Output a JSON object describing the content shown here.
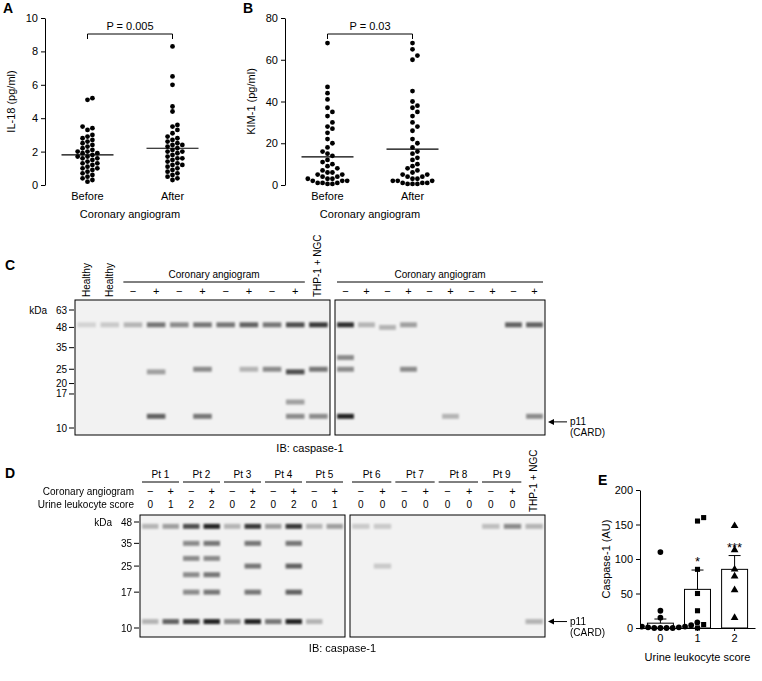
{
  "chart_data": [
    {
      "panel": "A",
      "type": "dot",
      "y_label": "IL-18 (pg/ml)",
      "x_label": "Coronary angiogram",
      "categories": [
        "Before",
        "After"
      ],
      "values": [
        [
          5.2,
          5.1,
          3.5,
          3.4,
          3.3,
          3.0,
          2.9,
          2.8,
          2.7,
          2.6,
          2.5,
          2.4,
          2.3,
          2.2,
          2.1,
          2.0,
          2.0,
          1.9,
          1.8,
          1.7,
          1.6,
          1.6,
          1.5,
          1.4,
          1.3,
          1.3,
          1.2,
          1.1,
          1.0,
          1.0,
          0.9,
          0.8,
          0.7,
          0.6,
          0.5,
          0.4,
          0.3,
          0.2,
          1.9,
          1.7
        ],
        [
          8.3,
          6.5,
          6.0,
          4.7,
          4.4,
          3.6,
          3.5,
          3.3,
          3.1,
          2.9,
          2.8,
          2.7,
          2.6,
          2.5,
          2.4,
          2.3,
          2.2,
          2.1,
          2.0,
          1.9,
          1.8,
          1.7,
          1.6,
          1.5,
          1.4,
          1.3,
          1.2,
          1.1,
          1.0,
          0.9,
          0.8,
          0.7,
          0.6,
          0.5,
          0.4,
          0.3,
          2.0,
          1.6,
          2.4,
          1.2
        ]
      ],
      "means": [
        1.8,
        2.2
      ],
      "ylim": [
        0,
        10
      ],
      "yticks": [
        0,
        2,
        4,
        6,
        8,
        10
      ],
      "annotation": "P = 0.005",
      "color": "#000000"
    },
    {
      "panel": "B",
      "type": "dot",
      "y_label": "KIM-1 (pg/ml)",
      "x_label": "Coronary angiogram",
      "categories": [
        "Before",
        "After"
      ],
      "values": [
        [
          68,
          47,
          44,
          41,
          37,
          35,
          33,
          30,
          28,
          27,
          25,
          22,
          20,
          18,
          16,
          15,
          14,
          12,
          11,
          10,
          9,
          8,
          7,
          6,
          6,
          5,
          5,
          4,
          4,
          3,
          3,
          3,
          2,
          2,
          2,
          1,
          1,
          1,
          0.5,
          0.5
        ],
        [
          68,
          65,
          62,
          60,
          45,
          40,
          38,
          37,
          35,
          33,
          30,
          28,
          26,
          22,
          20,
          18,
          16,
          15,
          13,
          12,
          10,
          9,
          8,
          7,
          6,
          5,
          5,
          4,
          4,
          3,
          3,
          2,
          2,
          2,
          1,
          1,
          1,
          0.5,
          0.5,
          0.5
        ]
      ],
      "means": [
        13.5,
        17.2
      ],
      "ylim": [
        0,
        80
      ],
      "yticks": [
        0,
        20,
        40,
        60,
        80
      ],
      "annotation": "P = 0.03",
      "color": "#000000"
    },
    {
      "panel": "E",
      "type": "bar",
      "y_label": "Caspase-1 (AU)",
      "x_label": "Urine leukocyte score",
      "categories": [
        "0",
        "1",
        "2"
      ],
      "values": [
        7,
        56,
        85
      ],
      "errors": [
        6,
        28,
        20
      ],
      "points": [
        {
          "marker": "circle",
          "values": [
            110,
            25,
            15,
            8,
            5,
            4,
            3,
            2,
            2,
            1,
            1,
            0,
            0,
            0,
            0
          ]
        },
        {
          "marker": "square",
          "values": [
            160,
            155,
            85,
            50,
            25,
            5,
            0
          ]
        },
        {
          "marker": "triangle",
          "values": [
            148,
            113,
            85,
            75,
            55,
            15
          ]
        }
      ],
      "annotations": [
        {
          "category": "1",
          "text": "*"
        },
        {
          "category": "2",
          "text": "***"
        }
      ],
      "ylim": [
        0,
        200
      ],
      "yticks": [
        0,
        50,
        100,
        150,
        200
      ],
      "color": "#ffffff"
    }
  ],
  "blots": [
    {
      "panel": "C",
      "kda_title": "kDa",
      "kda_markers": [
        63,
        48,
        35,
        25,
        20,
        17,
        10
      ],
      "boxes": [
        {
          "lanes": [
            {
              "label": "Healthy"
            },
            {
              "label": "Healthy"
            },
            {
              "group": "Coronary angiogram",
              "signs": [
                "−",
                "+",
                "−",
                "+",
                "−",
                "+",
                "−",
                "+"
              ]
            },
            {
              "label": "THP-1 + NGC"
            }
          ]
        },
        {
          "lanes": [
            {
              "group": "Coronary angiogram",
              "signs": [
                "−",
                "+",
                "−",
                "+",
                "−",
                "+",
                "−",
                "+",
                "−",
                "+"
              ]
            }
          ]
        }
      ],
      "band_label": [
        "p11",
        "(CARD)"
      ],
      "antibody": "IB: caspase-1"
    },
    {
      "panel": "D",
      "kda_title": "kDa",
      "kda_markers": [
        48,
        35,
        25,
        17,
        10
      ],
      "rows": [
        "Coronary angiogram",
        "Urine leukocyte score"
      ],
      "boxes": [
        {
          "patients": [
            {
              "label": "Pt 1",
              "signs": [
                "−",
                "+"
              ],
              "scores": [
                0,
                1
              ]
            },
            {
              "label": "Pt 2",
              "signs": [
                "−",
                "+"
              ],
              "scores": [
                2,
                2
              ]
            },
            {
              "label": "Pt 3",
              "signs": [
                "−",
                "+"
              ],
              "scores": [
                0,
                2
              ]
            },
            {
              "label": "Pt 4",
              "signs": [
                "−",
                "+"
              ],
              "scores": [
                0,
                2
              ]
            },
            {
              "label": "Pt 5",
              "signs": [
                "−",
                "+"
              ],
              "scores": [
                0,
                1
              ]
            }
          ]
        },
        {
          "patients": [
            {
              "label": "Pt 6",
              "signs": [
                "−",
                "+"
              ],
              "scores": [
                0,
                0
              ]
            },
            {
              "label": "Pt 7",
              "signs": [
                "−",
                "+"
              ],
              "scores": [
                0,
                0
              ]
            },
            {
              "label": "Pt 8",
              "signs": [
                "−",
                "+"
              ],
              "scores": [
                0,
                0
              ]
            },
            {
              "label": "Pt 9",
              "signs": [
                "−",
                "+"
              ],
              "scores": [
                0,
                0
              ]
            }
          ],
          "extra": "THP-1 + NGC"
        }
      ],
      "band_label": [
        "p11",
        "(CARD)"
      ],
      "antibody": "IB: caspase-1"
    }
  ]
}
